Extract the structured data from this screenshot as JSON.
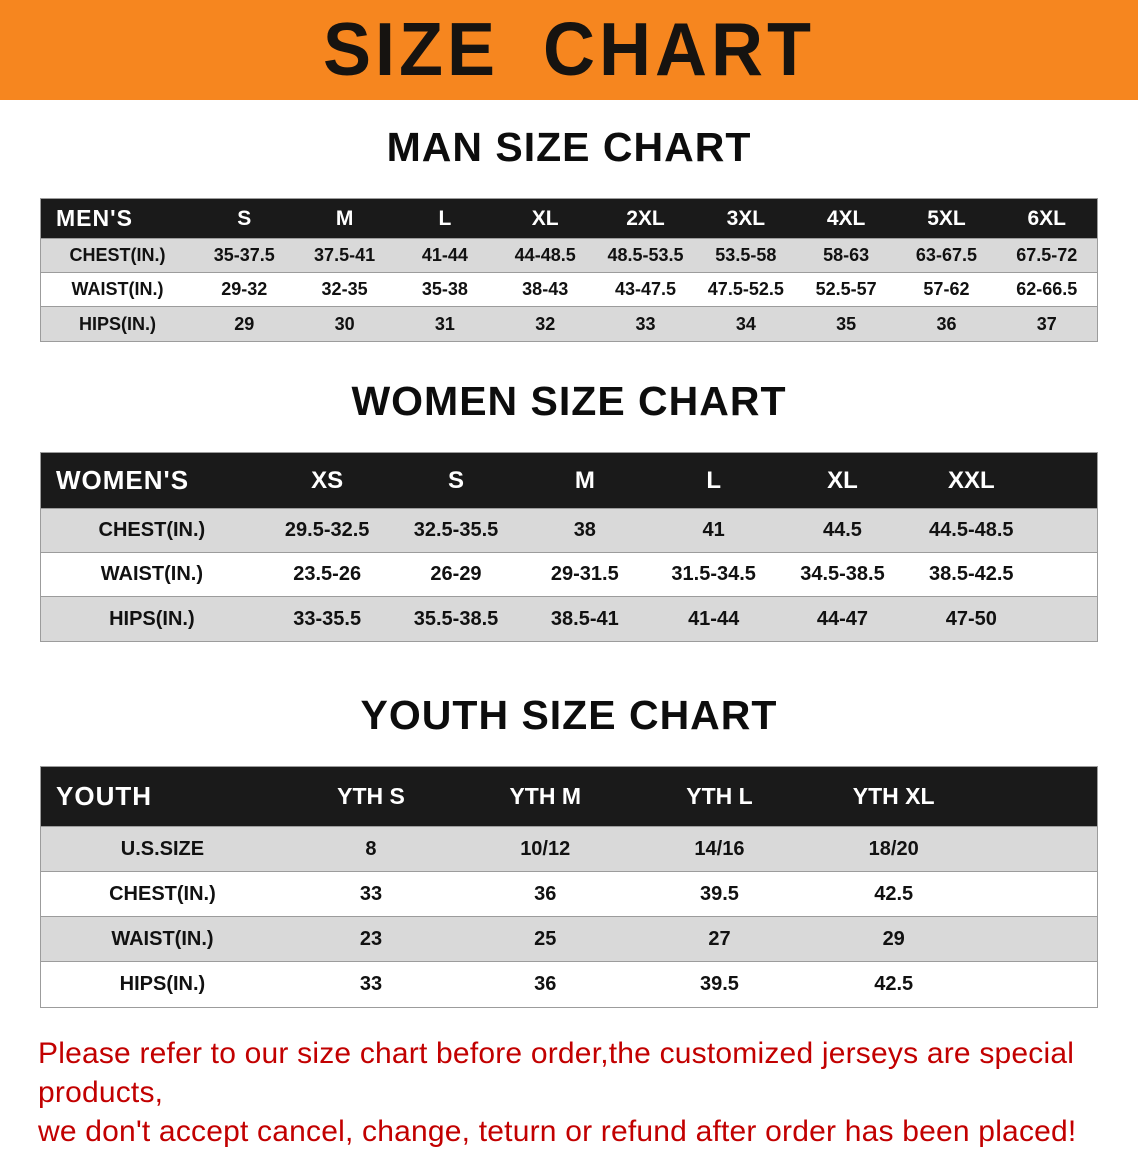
{
  "banner": {
    "title": "SIZE CHART",
    "bg_color": "#f6861f"
  },
  "colors": {
    "table_header_bg": "#1a1a1a",
    "row_shade": "#d9d9d9"
  },
  "sections": [
    {
      "id": "men",
      "heading": "MAN SIZE CHART",
      "table": {
        "title": "MEN'S",
        "columns": [
          "S",
          "M",
          "L",
          "XL",
          "2XL",
          "3XL",
          "4XL",
          "5XL",
          "6XL"
        ],
        "rows": [
          {
            "label": "CHEST(IN.)",
            "values": [
              "35-37.5",
              "37.5-41",
              "41-44",
              "44-48.5",
              "48.5-53.5",
              "53.5-58",
              "58-63",
              "63-67.5",
              "67.5-72"
            ]
          },
          {
            "label": "WAIST(IN.)",
            "values": [
              "29-32",
              "32-35",
              "35-38",
              "38-43",
              "43-47.5",
              "47.5-52.5",
              "52.5-57",
              "57-62",
              "62-66.5"
            ]
          },
          {
            "label": "HIPS(IN.)",
            "values": [
              "29",
              "30",
              "31",
              "32",
              "33",
              "34",
              "35",
              "36",
              "37"
            ]
          }
        ]
      }
    },
    {
      "id": "women",
      "heading": "WOMEN SIZE CHART",
      "table": {
        "title": "WOMEN'S",
        "columns": [
          "XS",
          "S",
          "M",
          "L",
          "XL",
          "XXL"
        ],
        "rows": [
          {
            "label": "CHEST(IN.)",
            "values": [
              "29.5-32.5",
              "32.5-35.5",
              "38",
              "41",
              "44.5",
              "44.5-48.5"
            ]
          },
          {
            "label": "WAIST(IN.)",
            "values": [
              "23.5-26",
              "26-29",
              "29-31.5",
              "31.5-34.5",
              "34.5-38.5",
              "38.5-42.5"
            ]
          },
          {
            "label": "HIPS(IN.)",
            "values": [
              "33-35.5",
              "35.5-38.5",
              "38.5-41",
              "41-44",
              "44-47",
              "47-50"
            ]
          }
        ]
      }
    },
    {
      "id": "youth",
      "heading": "YOUTH SIZE CHART",
      "table": {
        "title": "YOUTH",
        "columns": [
          "YTH S",
          "YTH M",
          "YTH L",
          "YTH XL"
        ],
        "rows": [
          {
            "label": "U.S.SIZE",
            "values": [
              "8",
              "10/12",
              "14/16",
              "18/20"
            ]
          },
          {
            "label": "CHEST(IN.)",
            "values": [
              "33",
              "36",
              "39.5",
              "42.5"
            ]
          },
          {
            "label": "WAIST(IN.)",
            "values": [
              "23",
              "25",
              "27",
              "29"
            ]
          },
          {
            "label": "HIPS(IN.)",
            "values": [
              "33",
              "36",
              "39.5",
              "42.5"
            ]
          }
        ]
      }
    }
  ],
  "disclaimer": {
    "color": "#c20000",
    "lines": [
      "Please refer to our size chart before order,the customized jerseys are special products,",
      "we don't accept cancel, change, teturn or refund after order has been placed!"
    ]
  }
}
